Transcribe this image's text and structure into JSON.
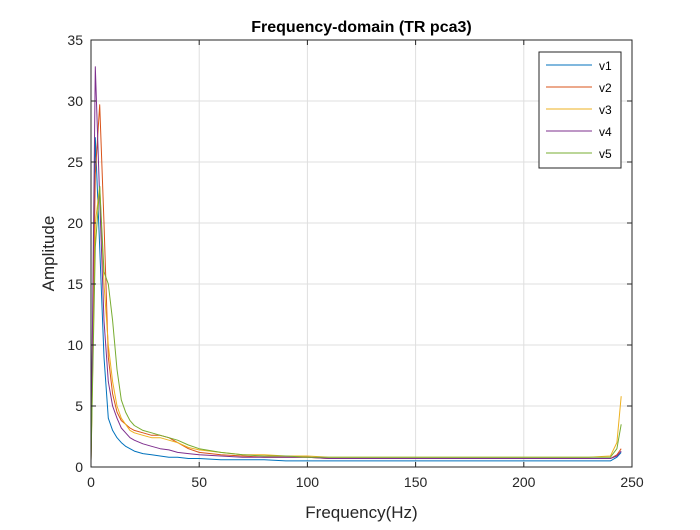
{
  "chart_data": {
    "type": "line",
    "title": "Frequency-domain (TR pca3)",
    "xlabel": "Frequency(Hz)",
    "ylabel": "Amplitude",
    "xlim": [
      0,
      250
    ],
    "ylim": [
      0,
      35
    ],
    "xticks": [
      0,
      50,
      100,
      150,
      200,
      250
    ],
    "yticks": [
      0,
      5,
      10,
      15,
      20,
      25,
      30,
      35
    ],
    "grid": true,
    "legend_position": "top-right",
    "x": [
      0,
      2,
      4,
      6,
      8,
      10,
      12,
      14,
      16,
      18,
      20,
      24,
      28,
      32,
      36,
      40,
      45,
      50,
      60,
      70,
      80,
      90,
      100,
      110,
      120,
      130,
      140,
      150,
      160,
      170,
      180,
      190,
      200,
      210,
      220,
      230,
      240,
      243,
      245
    ],
    "series": [
      {
        "name": "v1",
        "color": "#0072BD",
        "values": [
          0.5,
          27.0,
          18.0,
          9.0,
          4.0,
          3.0,
          2.4,
          2.0,
          1.7,
          1.5,
          1.3,
          1.1,
          1.0,
          0.9,
          0.8,
          0.8,
          0.7,
          0.7,
          0.6,
          0.6,
          0.6,
          0.5,
          0.5,
          0.5,
          0.5,
          0.5,
          0.5,
          0.5,
          0.5,
          0.5,
          0.5,
          0.5,
          0.5,
          0.5,
          0.5,
          0.5,
          0.5,
          0.8,
          1.2
        ]
      },
      {
        "name": "v2",
        "color": "#D95319",
        "values": [
          0.5,
          24.0,
          29.7,
          20.0,
          9.0,
          6.0,
          4.5,
          3.8,
          3.5,
          3.2,
          3.0,
          2.8,
          2.6,
          2.6,
          2.4,
          2.0,
          1.5,
          1.2,
          1.0,
          0.9,
          0.8,
          0.8,
          0.8,
          0.7,
          0.7,
          0.7,
          0.7,
          0.7,
          0.7,
          0.7,
          0.7,
          0.7,
          0.7,
          0.7,
          0.7,
          0.7,
          0.7,
          1.0,
          1.5
        ]
      },
      {
        "name": "v3",
        "color": "#EDB120",
        "values": [
          0.5,
          20.0,
          23.0,
          15.0,
          10.0,
          7.0,
          5.0,
          4.0,
          3.5,
          3.0,
          2.8,
          2.6,
          2.4,
          2.4,
          2.2,
          2.0,
          1.6,
          1.4,
          1.2,
          1.0,
          1.0,
          0.9,
          0.9,
          0.8,
          0.8,
          0.8,
          0.8,
          0.8,
          0.8,
          0.8,
          0.8,
          0.8,
          0.8,
          0.8,
          0.8,
          0.8,
          0.9,
          2.0,
          5.8
        ]
      },
      {
        "name": "v4",
        "color": "#7E2F8E",
        "values": [
          0.5,
          32.8,
          22.0,
          12.0,
          7.0,
          5.0,
          4.0,
          3.2,
          2.8,
          2.4,
          2.2,
          1.9,
          1.7,
          1.5,
          1.4,
          1.2,
          1.1,
          1.0,
          0.9,
          0.8,
          0.8,
          0.8,
          0.8,
          0.7,
          0.7,
          0.7,
          0.7,
          0.7,
          0.7,
          0.7,
          0.7,
          0.7,
          0.7,
          0.7,
          0.7,
          0.7,
          0.7,
          0.9,
          1.3
        ]
      },
      {
        "name": "v5",
        "color": "#77AC30",
        "values": [
          0.5,
          18.0,
          23.0,
          16.0,
          15.0,
          12.0,
          8.0,
          5.5,
          4.5,
          3.8,
          3.4,
          3.0,
          2.8,
          2.6,
          2.4,
          2.2,
          1.8,
          1.5,
          1.2,
          1.0,
          0.9,
          0.9,
          0.8,
          0.8,
          0.8,
          0.8,
          0.8,
          0.8,
          0.8,
          0.8,
          0.8,
          0.8,
          0.8,
          0.8,
          0.8,
          0.8,
          0.8,
          1.5,
          3.5
        ]
      }
    ]
  }
}
